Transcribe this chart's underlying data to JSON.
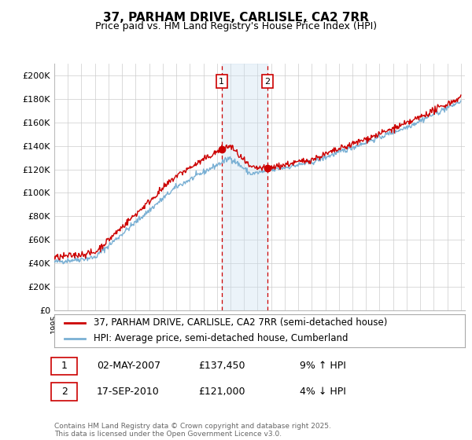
{
  "title": "37, PARHAM DRIVE, CARLISLE, CA2 7RR",
  "subtitle": "Price paid vs. HM Land Registry's House Price Index (HPI)",
  "ylim": [
    0,
    210000
  ],
  "yticks": [
    0,
    20000,
    40000,
    60000,
    80000,
    100000,
    120000,
    140000,
    160000,
    180000,
    200000
  ],
  "ytick_labels": [
    "£0",
    "£20K",
    "£40K",
    "£60K",
    "£80K",
    "£100K",
    "£120K",
    "£140K",
    "£160K",
    "£180K",
    "£200K"
  ],
  "year_start": 1995,
  "year_end": 2025,
  "sale1_date": 2007.35,
  "sale1_price": 137450,
  "sale1_label": "1",
  "sale2_date": 2010.72,
  "sale2_price": 121000,
  "sale2_label": "2",
  "red_color": "#cc0000",
  "blue_color": "#7ab0d4",
  "blue_fill": "#c8dff0",
  "legend_line1": "37, PARHAM DRIVE, CARLISLE, CA2 7RR (semi-detached house)",
  "legend_line2": "HPI: Average price, semi-detached house, Cumberland",
  "annotation1_date": "02-MAY-2007",
  "annotation1_price": "£137,450",
  "annotation1_hpi": "9% ↑ HPI",
  "annotation2_date": "17-SEP-2010",
  "annotation2_price": "£121,000",
  "annotation2_hpi": "4% ↓ HPI",
  "footer": "Contains HM Land Registry data © Crown copyright and database right 2025.\nThis data is licensed under the Open Government Licence v3.0.",
  "background_color": "#ffffff",
  "grid_color": "#cccccc"
}
